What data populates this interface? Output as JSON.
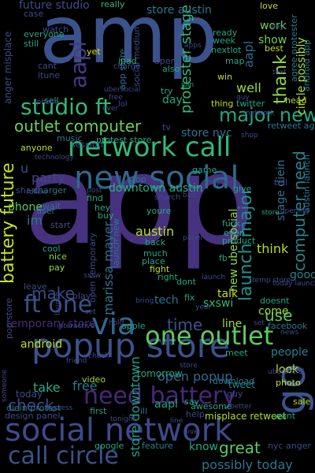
{
  "words": [
    {
      "text": "app",
      "color": "#46327e",
      "orient": "h"
    },
    {
      "text": "amp",
      "color": "#3b528b",
      "orient": "h"
    },
    {
      "text": "social network",
      "color": "#3e4a89",
      "orient": "h"
    },
    {
      "text": "popup store",
      "color": "#3b528b",
      "orient": "h"
    },
    {
      "text": "network call",
      "color": "#35b779",
      "orient": "h"
    },
    {
      "text": "new social",
      "color": "#31688e",
      "orient": "h"
    },
    {
      "text": "via",
      "color": "#31688e",
      "orient": "h"
    },
    {
      "text": "one outlet",
      "color": "#5ec962",
      "orient": "h"
    },
    {
      "text": "call circle",
      "color": "#3b528b",
      "orient": "h"
    },
    {
      "text": "need battery",
      "color": "#482878",
      "orient": "h"
    },
    {
      "text": "studio ft",
      "color": "#35b779",
      "orient": "h"
    },
    {
      "text": "outlet computer",
      "color": "#6ece58",
      "orient": "h"
    },
    {
      "text": "major new",
      "color": "#21a685",
      "orient": "h"
    },
    {
      "text": "ft one",
      "color": "#3b528b",
      "orient": "h"
    },
    {
      "text": "go",
      "color": "#3b528b",
      "orient": "v"
    },
    {
      "text": "aapl",
      "color": "#443a83",
      "orient": "v"
    },
    {
      "text": "aapl",
      "color": "#31688e",
      "orient": "v"
    },
    {
      "text": "battery future",
      "color": "#c8e020",
      "orient": "v"
    },
    {
      "text": "launch major",
      "color": "#21918c",
      "orient": "v"
    },
    {
      "text": "computer need",
      "color": "#26828e",
      "orient": "v"
    },
    {
      "text": "thank",
      "color": "#90d743",
      "orient": "v"
    },
    {
      "text": "check",
      "color": "#3e4a89",
      "orient": "h"
    },
    {
      "text": "great",
      "color": "#5ec962",
      "orient": "h"
    },
    {
      "text": "make",
      "color": "#3e4a89",
      "orient": "h"
    },
    {
      "text": "use",
      "color": "#5ec962",
      "orient": "h"
    },
    {
      "text": "time",
      "color": "#3b528b",
      "orient": "h"
    },
    {
      "text": "austin",
      "color": "#bddf26",
      "orient": "h"
    },
    {
      "text": "think",
      "color": "#b5de2b",
      "orient": "h"
    },
    {
      "text": "party",
      "color": "#414487",
      "orient": "h"
    },
    {
      "text": "possibly today",
      "color": "#2a788e",
      "orient": "h"
    },
    {
      "text": "temporary store",
      "color": "#482878",
      "orient": "h"
    },
    {
      "text": "downtown austin",
      "color": "#2ab07f",
      "orient": "h"
    },
    {
      "text": "store nyc",
      "color": "#2c728e",
      "orient": "h"
    },
    {
      "text": "android",
      "color": "#bddf26",
      "orient": "h"
    },
    {
      "text": "take",
      "color": "#25ab82",
      "orient": "h"
    },
    {
      "text": "free",
      "color": "#2a788e",
      "orient": "h"
    },
    {
      "text": "open popup",
      "color": "#31688e",
      "orient": "h"
    },
    {
      "text": "store downtown",
      "color": "#1fa088",
      "orient": "v"
    },
    {
      "text": "marissa mayer",
      "color": "#2c728e",
      "orient": "v"
    },
    {
      "text": "protester stage",
      "color": "#35b779",
      "orient": "v"
    },
    {
      "text": "store austin",
      "color": "#2a788e",
      "orient": "h"
    },
    {
      "text": "future studio",
      "color": "#3e4a89",
      "orient": "h"
    },
    {
      "text": "really",
      "color": "#35b779",
      "orient": "h"
    },
    {
      "text": "work",
      "color": "#6ece58",
      "orient": "h"
    },
    {
      "text": "show",
      "color": "#6ece58",
      "orient": "h"
    },
    {
      "text": "well",
      "color": "#9fda3a",
      "orient": "h"
    },
    {
      "text": "circle possibly",
      "color": "#addc30",
      "orient": "v"
    },
    {
      "text": "anger misplace",
      "color": "#3e4a89",
      "orient": "v"
    },
    {
      "text": "phone",
      "color": "#5ec962",
      "orient": "h"
    },
    {
      "text": "people",
      "color": "#26828e",
      "orient": "h"
    },
    {
      "text": "look",
      "color": "#bddf26",
      "orient": "h"
    },
    {
      "text": "tech",
      "color": "#2c728e",
      "orient": "h"
    },
    {
      "text": "talk",
      "color": "#bddf26",
      "orient": "h"
    },
    {
      "text": "sxswi",
      "color": "#35b779",
      "orient": "h"
    },
    {
      "text": "come",
      "color": "#9fda3a",
      "orient": "h"
    },
    {
      "text": "good",
      "color": "#26828e",
      "orient": "h"
    },
    {
      "text": "line",
      "color": "#9fda3a",
      "orient": "h"
    },
    {
      "text": "day",
      "color": "#21a685",
      "orient": "h"
    },
    {
      "text": "know",
      "color": "#22a884",
      "orient": "h"
    },
    {
      "text": "tweet",
      "color": "#26828e",
      "orient": "h"
    },
    {
      "text": "tomorrow",
      "color": "#22a884",
      "orient": "h"
    },
    {
      "text": "feature",
      "color": "#26828e",
      "orient": "h"
    },
    {
      "text": "misplace retweet",
      "color": "#addc30",
      "orient": "h"
    },
    {
      "text": "wait",
      "color": "#2c728e",
      "orient": "h"
    },
    {
      "text": "nyc anger",
      "color": "#3e4a89",
      "orient": "h"
    },
    {
      "text": "photo",
      "color": "#bddf26",
      "orient": "h"
    },
    {
      "text": "today",
      "color": "#3e4a89",
      "orient": "h"
    },
    {
      "text": "new ubersocial",
      "color": "#90d743",
      "orient": "v"
    },
    {
      "text": "launch new",
      "color": "#2a788e",
      "orient": "v"
    },
    {
      "text": "stage diein",
      "color": "#2c728e",
      "orient": "v"
    },
    {
      "text": "design panel",
      "color": "#3e4a89",
      "orient": "h"
    },
    {
      "text": "diein protest",
      "color": "#2a788e",
      "orient": "h"
    },
    {
      "text": "first",
      "color": "#1fa088",
      "orient": "h"
    },
    {
      "text": "help",
      "color": "#3e4a89",
      "orient": "h"
    },
    {
      "text": "google",
      "color": "#22a884",
      "orient": "h"
    },
    {
      "text": "sale",
      "color": "#b5de2b",
      "orient": "h"
    },
    {
      "text": "ill",
      "color": "#31688e",
      "orient": "h"
    },
    {
      "text": "aapl",
      "color": "#1fa088",
      "orient": "h"
    },
    {
      "text": "guy",
      "color": "#3e4a89",
      "orient": "h"
    },
    {
      "text": "meet",
      "color": "#25ab82",
      "orient": "h"
    },
    {
      "text": "video",
      "color": "#9fda3a",
      "orient": "h"
    },
    {
      "text": "im",
      "color": "#2c728e",
      "orient": "h"
    },
    {
      "text": "u",
      "color": "#3e4a89",
      "orient": "h"
    },
    {
      "text": "everyone",
      "color": "#22a884",
      "orient": "h"
    },
    {
      "text": "still",
      "color": "#22a884",
      "orient": "h"
    },
    {
      "text": "case",
      "color": "#3e4a89",
      "orient": "h"
    },
    {
      "text": "cant",
      "color": "#3e4a89",
      "orient": "h"
    },
    {
      "text": "itune",
      "color": "#3e4a89",
      "orient": "h"
    },
    {
      "text": "yet",
      "color": "#d2e21b",
      "orient": "h"
    },
    {
      "text": "sell",
      "color": "#22a884",
      "orient": "h"
    },
    {
      "text": "music",
      "color": "#2a788e",
      "orient": "h"
    },
    {
      "text": "protest store",
      "color": "#22a884",
      "orient": "h"
    },
    {
      "text": "session",
      "color": "#3b528b",
      "orient": "h"
    },
    {
      "text": "anyone",
      "color": "#b5de2b",
      "orient": "h"
    },
    {
      "text": "charger",
      "color": "#2a788e",
      "orient": "h"
    },
    {
      "text": "share",
      "color": "#3e4a89",
      "orient": "h"
    },
    {
      "text": "user",
      "color": "#2a788e",
      "orient": "h"
    },
    {
      "text": "start",
      "color": "#3e4a89",
      "orient": "h"
    },
    {
      "text": "cool",
      "color": "#22a884",
      "orient": "h"
    },
    {
      "text": "nice",
      "color": "#90d743",
      "orient": "h"
    },
    {
      "text": "pay",
      "color": "#90d743",
      "orient": "h"
    },
    {
      "text": "leave",
      "color": "#3e4a89",
      "orient": "h"
    },
    {
      "text": "play",
      "color": "#3e4a89",
      "orient": "h"
    },
    {
      "text": "open temporary",
      "color": "#3e4a89",
      "orient": "v"
    },
    {
      "text": "find",
      "color": "#25ab82",
      "orient": "h"
    },
    {
      "text": "hey",
      "color": "#22a884",
      "orient": "h"
    },
    {
      "text": "buy",
      "color": "#22a884",
      "orient": "h"
    },
    {
      "text": "youre",
      "color": "#25ab82",
      "orient": "h"
    },
    {
      "text": "back",
      "color": "#22a884",
      "orient": "h"
    },
    {
      "text": "much",
      "color": "#22a884",
      "orient": "h"
    },
    {
      "text": "place",
      "color": "#22a884",
      "orient": "h"
    },
    {
      "text": "right",
      "color": "#22a884",
      "orient": "h"
    },
    {
      "text": "fight",
      "color": "#bddf26",
      "orient": "h"
    },
    {
      "text": "dont",
      "color": "#22a884",
      "orient": "h"
    },
    {
      "text": "fix",
      "color": "#22a884",
      "orient": "h"
    },
    {
      "text": "fuck",
      "color": "#22a884",
      "orient": "h"
    },
    {
      "text": "even",
      "color": "#22a884",
      "orient": "h"
    },
    {
      "text": "product",
      "color": "#22a884",
      "orient": "h"
    },
    {
      "text": "retweet agree",
      "color": "#2a788e",
      "orient": "h"
    },
    {
      "text": "tv",
      "color": "#3e4a89",
      "orient": "h"
    },
    {
      "text": "thing",
      "color": "#bddf26",
      "orient": "h"
    },
    {
      "text": "twitter",
      "color": "#22a884",
      "orient": "h"
    },
    {
      "text": "game",
      "color": "#22a884",
      "orient": "h"
    },
    {
      "text": "give",
      "color": "#22a884",
      "orient": "h"
    },
    {
      "text": "ready",
      "color": "#22a884",
      "orient": "h"
    },
    {
      "text": "week",
      "color": "#22a884",
      "orient": "h"
    },
    {
      "text": "nextlot",
      "color": "#22a884",
      "orient": "h"
    },
    {
      "text": "map",
      "color": "#22a884",
      "orient": "h"
    },
    {
      "text": "win",
      "color": "#bddf26",
      "orient": "h"
    },
    {
      "text": "love",
      "color": "#bddf26",
      "orient": "h"
    },
    {
      "text": "best",
      "color": "#bddf26",
      "orient": "h"
    },
    {
      "text": "head",
      "color": "#bddf26",
      "orient": "h"
    },
    {
      "text": "apple",
      "color": "#22a884",
      "orient": "h"
    },
    {
      "text": "facebook",
      "color": "#2a788e",
      "orient": "h"
    },
    {
      "text": "doesnt",
      "color": "#22a884",
      "orient": "h"
    },
    {
      "text": "say",
      "color": "#22a884",
      "orient": "h"
    },
    {
      "text": "awesome",
      "color": "#22a884",
      "orient": "h"
    },
    {
      "text": "want",
      "color": "#22a884",
      "orient": "h"
    },
    {
      "text": "download",
      "color": "#2a788e",
      "orient": "h"
    },
    {
      "text": "pop store",
      "color": "#3e4a89",
      "orient": "v"
    },
    {
      "text": "social medium",
      "color": "#3e4a89",
      "orient": "v"
    },
    {
      "text": "app store",
      "color": "#2a788e",
      "orient": "v"
    },
    {
      "text": "android app",
      "color": "#2a788e",
      "orient": "v"
    },
    {
      "text": "austin launch",
      "color": "#2a788e",
      "orient": "v"
    },
    {
      "text": "agree protester",
      "color": "#2a788e",
      "orient": "v"
    },
    {
      "text": "ipad",
      "color": "#22a884",
      "orient": "h"
    },
    {
      "text": "watch",
      "color": "#3e4a89",
      "orient": "h"
    },
    {
      "text": "charge",
      "color": "#3e4a89",
      "orient": "h"
    },
    {
      "text": "open",
      "color": "#3e4a89",
      "orient": "h"
    },
    {
      "text": "try",
      "color": "#22a884",
      "orient": "h"
    },
    {
      "text": "also",
      "color": "#22a884",
      "orient": "h"
    },
    {
      "text": "stop",
      "color": "#2a788e",
      "orient": "h"
    },
    {
      "text": "search",
      "color": "#3e4a89",
      "orient": "h"
    },
    {
      "text": "lol",
      "color": "#3e4a89",
      "orient": "h"
    },
    {
      "text": "tell",
      "color": "#3e4a89",
      "orient": "h"
    },
    {
      "text": "iphone",
      "color": "#3e4a89",
      "orient": "h"
    },
    {
      "text": "ever",
      "color": "#3e4a89",
      "orient": "h"
    },
    {
      "text": "store",
      "color": "#22a884",
      "orient": "h"
    },
    {
      "text": "post",
      "color": "#3e4a89",
      "orient": "h"
    },
    {
      "text": "interactive",
      "color": "#3e4a89",
      "orient": "h"
    },
    {
      "text": "text",
      "color": "#3e4a89",
      "orient": "h"
    },
    {
      "text": "panel",
      "color": "#3e4a89",
      "orient": "h"
    },
    {
      "text": "bad",
      "color": "#3e4a89",
      "orient": "h"
    },
    {
      "text": "fb",
      "color": "#22a884",
      "orient": "h"
    },
    {
      "text": "one",
      "color": "#3e4a89",
      "orient": "h"
    },
    {
      "text": "bring",
      "color": "#3e4a89",
      "orient": "h"
    },
    {
      "text": "year",
      "color": "#3e4a89",
      "orient": "h"
    },
    {
      "text": "set",
      "color": "#3e4a89",
      "orient": "h"
    },
    {
      "text": "line",
      "color": "#3e4a89",
      "orient": "h"
    },
    {
      "text": "hold",
      "color": "#3e4a89",
      "orient": "h"
    },
    {
      "text": "follow",
      "color": "#3e4a89",
      "orient": "h"
    },
    {
      "text": "opening",
      "color": "#3e4a89",
      "orient": "h"
    },
    {
      "text": "temp store",
      "color": "#3e4a89",
      "orient": "h"
    },
    {
      "text": "someone",
      "color": "#3e4a89",
      "orient": "h"
    },
    {
      "text": "today launch",
      "color": "#3e4a89",
      "orient": "v"
    },
    {
      "text": "sxsw",
      "color": "#3e4a89",
      "orient": "h"
    },
    {
      "text": "join",
      "color": "#3e4a89",
      "orient": "h"
    },
    {
      "text": "live",
      "color": "#22a884",
      "orient": "h"
    },
    {
      "text": "network",
      "color": "#3e4a89",
      "orient": "h"
    },
    {
      "text": "launch",
      "color": "#3e4a89",
      "orient": "h"
    },
    {
      "text": "happen",
      "color": "#3e4a89",
      "orient": "h"
    },
    {
      "text": "set",
      "color": "#3e4a89",
      "orient": "h"
    },
    {
      "text": "tonight",
      "color": "#3e4a89",
      "orient": "h"
    },
    {
      "text": "guess",
      "color": "#3e4a89",
      "orient": "h"
    },
    {
      "text": "better",
      "color": "#3e4a89",
      "orient": "h"
    },
    {
      "text": "check",
      "color": "#3e4a89",
      "orient": "h"
    },
    {
      "text": "store",
      "color": "#3e4a89",
      "orient": "h"
    },
    {
      "text": "friend",
      "color": "#3e4a89",
      "orient": "h"
    },
    {
      "text": "technology",
      "color": "#3e4a89",
      "orient": "h"
    },
    {
      "text": "launch",
      "color": "#3e4a89",
      "orient": "h"
    },
    {
      "text": "ubersocial",
      "color": "#3e4a89",
      "orient": "v"
    },
    {
      "text": "apps",
      "color": "#3e4a89",
      "orient": "h"
    },
    {
      "text": "news",
      "color": "#3e4a89",
      "orient": "h"
    },
    {
      "text": "ubersocial",
      "color": "#3e4a89",
      "orient": "h"
    },
    {
      "text": "free",
      "color": "#3e4a89",
      "orient": "h"
    },
    {
      "text": "pay",
      "color": "#3e4a89",
      "orient": "h"
    },
    {
      "text": "shop",
      "color": "#3e4a89",
      "orient": "h"
    },
    {
      "text": "guy",
      "color": "#3e4a89",
      "orient": "h"
    },
    {
      "text": "austin",
      "color": "#3e4a89",
      "orient": "h"
    }
  ]
}
